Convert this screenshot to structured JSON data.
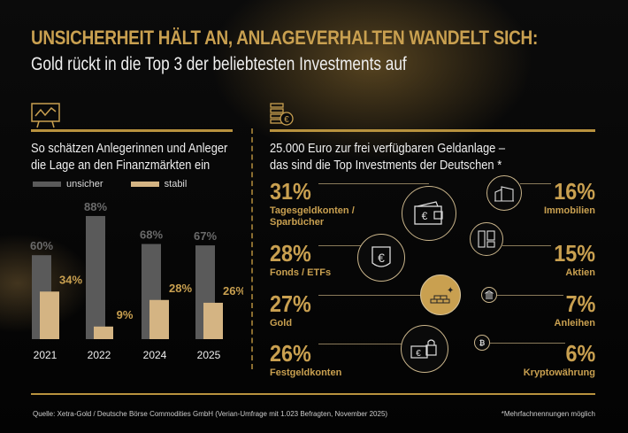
{
  "title": "UNSICHERHEIT HÄLT AN, ANLAGEVERHALTEN WANDELT SICH:",
  "subtitle": "Gold rückt in die Top 3 der beliebtesten Investments auf",
  "colors": {
    "gold": "#c9a050",
    "unsicher": "#5a5a5a",
    "stabil": "#d4b483",
    "background": "#050505"
  },
  "left": {
    "heading_line1": "So schätzen Anlegerinnen und Anleger",
    "heading_line2": "die Lage an den Finanzmärkten ein",
    "icon": "chart-presentation-icon"
  },
  "chart_data": {
    "type": "bar",
    "categories": [
      "2021",
      "2022",
      "2024",
      "2025"
    ],
    "series": [
      {
        "name": "unsicher",
        "values": [
          60,
          88,
          68,
          67
        ],
        "labels": [
          "60%",
          "88%",
          "68%",
          "67%"
        ]
      },
      {
        "name": "stabil",
        "values": [
          34,
          9,
          28,
          26
        ],
        "labels": [
          "34%",
          "9%",
          "28%",
          "26%"
        ]
      }
    ],
    "ylim": [
      0,
      100
    ],
    "grid": false,
    "legend": "top-left"
  },
  "right": {
    "heading_line1": "25.000 Euro zur frei verfügbaren Geldanlage –",
    "heading_line2": "das sind die Top Investments der Deutschen *",
    "icon": "coins-euro-icon",
    "items": [
      {
        "pct": "31%",
        "label": "Tagesgeldkonten /",
        "label2": "Sparbücher",
        "icon": "wallet-euro-icon"
      },
      {
        "pct": "28%",
        "label": "Fonds / ETFs",
        "icon": "euro-shield-icon"
      },
      {
        "pct": "27%",
        "label": "Gold",
        "icon": "gold-bars-icon"
      },
      {
        "pct": "26%",
        "label": "Festgeldkonten",
        "icon": "locked-cash-icon"
      },
      {
        "pct": "16%",
        "label": "Immobilien",
        "icon": "buildings-icon"
      },
      {
        "pct": "15%",
        "label": "Aktien",
        "icon": "stock-tiles-icon"
      },
      {
        "pct": "7%",
        "label": "Anleihen",
        "icon": "bank-icon"
      },
      {
        "pct": "6%",
        "label": "Kryptowährung",
        "icon": "bitcoin-icon"
      }
    ]
  },
  "footer": {
    "source": "Quelle: Xetra-Gold / Deutsche Börse Commodities GmbH (Verian-Umfrage mit 1.023 Befragten, November 2025)",
    "note": "*Mehrfachnennungen möglich"
  }
}
